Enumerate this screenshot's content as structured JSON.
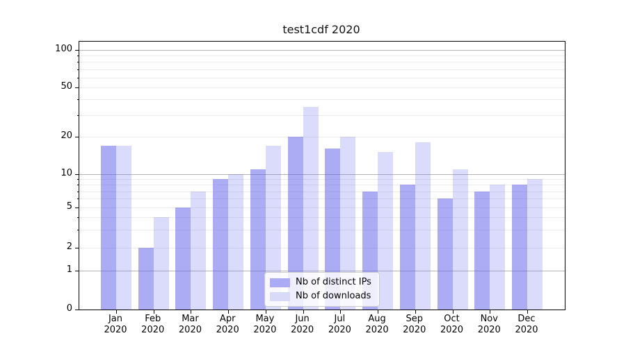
{
  "chart_data": {
    "type": "bar",
    "title": "test1cdf 2020",
    "categories": [
      "Jan",
      "Feb",
      "Mar",
      "Apr",
      "May",
      "Jun",
      "Jul",
      "Aug",
      "Sep",
      "Oct",
      "Nov",
      "Dec"
    ],
    "category_year": "2020",
    "series": [
      {
        "name": "Nb of distinct IPs",
        "color": "rgba(90,90,235,0.5)",
        "legend_color": "#aaaaf5",
        "values": [
          17,
          2,
          5,
          9,
          11,
          20,
          16,
          7,
          8,
          6,
          7,
          8
        ]
      },
      {
        "name": "Nb of downloads",
        "color": "rgba(90,90,235,0.22)",
        "legend_color": "#d9d9f8",
        "values": [
          17,
          4,
          7,
          10,
          17,
          35,
          20,
          15,
          18,
          11,
          8,
          9
        ]
      }
    ],
    "yscale": "symlog",
    "ylim": [
      0,
      100
    ],
    "y_tick_values": [
      0,
      1,
      2,
      5,
      10,
      20,
      50,
      100
    ],
    "y_tick_labels": [
      "0",
      "1",
      "2",
      "5",
      "10",
      "20",
      "50",
      "100"
    ],
    "y_minor_values": [
      3,
      4,
      6,
      7,
      8,
      9,
      30,
      40,
      60,
      70,
      80,
      90
    ],
    "grid": true,
    "legend_position": "lower center"
  }
}
